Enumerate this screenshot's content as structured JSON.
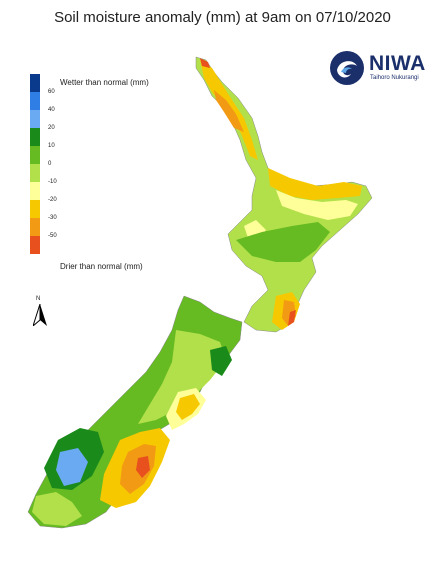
{
  "title": "Soil moisture anomaly (mm) at 9am on 07/10/2020",
  "logo": {
    "name": "NIWA",
    "tagline": "Taihoro Nukurangi"
  },
  "legend": {
    "top_label": "Wetter than normal (mm)",
    "bottom_label": "Drier than normal (mm)",
    "classes": [
      {
        "color": "#0a3a8c"
      },
      {
        "color": "#2f7ee6"
      },
      {
        "color": "#6aaaf2"
      },
      {
        "color": "#1a8a1a"
      },
      {
        "color": "#66bb22"
      },
      {
        "color": "#b2e04a"
      },
      {
        "color": "#ffff99"
      },
      {
        "color": "#f6c800"
      },
      {
        "color": "#f39a14"
      },
      {
        "color": "#e8501e"
      }
    ],
    "ticks": [
      "60",
      "40",
      "20",
      "10",
      "0",
      "-10",
      "-20",
      "-30",
      "-50"
    ]
  },
  "north_arrow": {
    "label": "N"
  }
}
